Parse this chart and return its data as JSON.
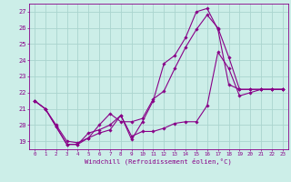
{
  "title": "",
  "xlabel": "Windchill (Refroidissement éolien,°C)",
  "bg_color": "#cceee8",
  "grid_color": "#aad4ce",
  "line_color": "#880088",
  "ylim": [
    18.5,
    27.5
  ],
  "xlim": [
    -0.5,
    23.5
  ],
  "yticks": [
    19,
    20,
    21,
    22,
    23,
    24,
    25,
    26,
    27
  ],
  "xticks": [
    0,
    1,
    2,
    3,
    4,
    5,
    6,
    7,
    8,
    9,
    10,
    11,
    12,
    13,
    14,
    15,
    16,
    17,
    18,
    19,
    20,
    21,
    22,
    23
  ],
  "series": [
    [
      21.5,
      21.0,
      19.9,
      18.8,
      18.8,
      19.2,
      19.5,
      19.7,
      20.6,
      19.1,
      20.2,
      21.5,
      23.8,
      24.3,
      25.4,
      27.0,
      27.2,
      25.9,
      22.5,
      22.2,
      22.2,
      22.2,
      22.2,
      22.2
    ],
    [
      21.5,
      21.0,
      19.9,
      18.8,
      18.8,
      19.5,
      19.7,
      20.0,
      20.6,
      19.3,
      19.6,
      19.6,
      19.8,
      20.1,
      20.2,
      20.2,
      21.2,
      24.5,
      23.5,
      21.8,
      22.0,
      22.2,
      22.2,
      22.2
    ],
    [
      21.5,
      21.0,
      20.0,
      19.0,
      18.9,
      19.2,
      20.0,
      20.7,
      20.2,
      20.2,
      20.4,
      21.6,
      22.1,
      23.5,
      24.8,
      25.9,
      26.8,
      26.0,
      24.2,
      22.2,
      22.2,
      22.2,
      22.2,
      22.2
    ]
  ],
  "font_size_x": 4.2,
  "font_size_y": 5.0,
  "font_size_xlabel": 5.2,
  "marker_size": 1.8,
  "line_width": 0.8
}
